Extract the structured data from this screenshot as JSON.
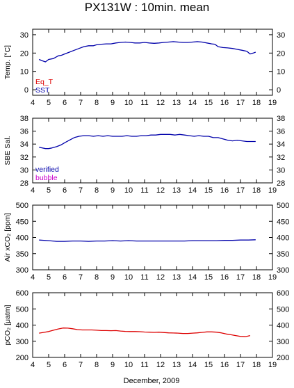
{
  "page": {
    "title": "PX131W : 10min. mean",
    "xlabel": "December, 2009"
  },
  "colors": {
    "red": "#dd0000",
    "blue": "#0000aa",
    "magenta": "#cc00cc",
    "axis": "#000000"
  },
  "chart_data": [
    {
      "type": "line",
      "ylabel": "Temp. [°C]",
      "ylim": [
        -3,
        33
      ],
      "yticks": [
        "0",
        "10",
        "20",
        "30"
      ],
      "xlim": [
        4,
        19
      ],
      "xticks": [
        "4",
        "5",
        "6",
        "7",
        "8",
        "9",
        "10",
        "11",
        "12",
        "13",
        "14",
        "15",
        "16",
        "17",
        "18",
        "19"
      ],
      "legend": [
        {
          "label": "Eq_T",
          "color": "#dd0000"
        },
        {
          "label": "SST",
          "color": "#0000aa"
        }
      ],
      "series": [
        {
          "name": "SST",
          "color": "#0000aa",
          "x": [
            4.4,
            4.6,
            4.8,
            5.0,
            5.3,
            5.6,
            5.8,
            6.0,
            6.3,
            6.6,
            6.9,
            7.2,
            7.5,
            7.8,
            8.0,
            8.3,
            8.6,
            8.9,
            9.2,
            9.5,
            9.8,
            10.1,
            10.4,
            10.7,
            11.0,
            11.3,
            11.6,
            11.9,
            12.2,
            12.5,
            12.8,
            13.1,
            13.4,
            13.7,
            14.0,
            14.3,
            14.6,
            14.9,
            15.2,
            15.4,
            15.6,
            15.9,
            16.2,
            16.5,
            16.8,
            17.1,
            17.4,
            17.6,
            17.8,
            17.95
          ],
          "values": [
            16.5,
            15.8,
            15.2,
            16.5,
            17.0,
            18.5,
            18.8,
            19.5,
            20.5,
            21.5,
            22.5,
            23.5,
            24.0,
            24.0,
            24.5,
            24.8,
            25.0,
            25.0,
            25.5,
            25.8,
            26.0,
            25.8,
            25.5,
            25.5,
            25.8,
            25.5,
            25.3,
            25.5,
            25.8,
            26.0,
            26.2,
            26.0,
            25.8,
            25.8,
            26.0,
            26.2,
            26.0,
            25.5,
            25.0,
            24.8,
            23.5,
            23.0,
            22.8,
            22.5,
            22.0,
            21.5,
            21.0,
            19.5,
            20.0,
            20.5
          ]
        }
      ]
    },
    {
      "type": "line",
      "ylabel": "SBE Sal.",
      "ylim": [
        28,
        38
      ],
      "yticks": [
        "28",
        "30",
        "32",
        "34",
        "36",
        "38"
      ],
      "xlim": [
        4,
        19
      ],
      "xticks": [
        "4",
        "5",
        "6",
        "7",
        "8",
        "9",
        "10",
        "11",
        "12",
        "13",
        "14",
        "15",
        "16",
        "17",
        "18",
        "19"
      ],
      "legend": [
        {
          "label": "verified",
          "color": "#0000aa"
        },
        {
          "label": "bubble",
          "color": "#cc00cc"
        }
      ],
      "series": [
        {
          "name": "verified",
          "color": "#0000aa",
          "x": [
            4.4,
            4.6,
            4.8,
            5.0,
            5.2,
            5.5,
            5.8,
            6.0,
            6.3,
            6.6,
            6.9,
            7.2,
            7.5,
            7.8,
            8.1,
            8.4,
            8.7,
            9.0,
            9.3,
            9.6,
            9.9,
            10.2,
            10.5,
            10.8,
            11.1,
            11.4,
            11.7,
            12.0,
            12.3,
            12.6,
            12.9,
            13.2,
            13.5,
            13.8,
            14.1,
            14.4,
            14.7,
            15.0,
            15.3,
            15.6,
            15.9,
            16.2,
            16.5,
            16.8,
            17.1,
            17.4,
            17.7,
            17.95
          ],
          "values": [
            33.5,
            33.4,
            33.3,
            33.3,
            33.4,
            33.6,
            33.9,
            34.2,
            34.6,
            35.0,
            35.2,
            35.3,
            35.3,
            35.2,
            35.3,
            35.2,
            35.3,
            35.2,
            35.2,
            35.2,
            35.3,
            35.2,
            35.2,
            35.3,
            35.3,
            35.4,
            35.4,
            35.5,
            35.5,
            35.5,
            35.4,
            35.5,
            35.4,
            35.3,
            35.2,
            35.3,
            35.2,
            35.2,
            35.0,
            35.0,
            34.8,
            34.6,
            34.5,
            34.6,
            34.5,
            34.4,
            34.4,
            34.4
          ]
        }
      ]
    },
    {
      "type": "line",
      "ylabel": "Air xCO₂ [ppm]",
      "ylim": [
        300,
        500
      ],
      "yticks": [
        "300",
        "350",
        "400",
        "450",
        "500"
      ],
      "xlim": [
        4,
        19
      ],
      "xticks": [
        "4",
        "5",
        "6",
        "7",
        "8",
        "9",
        "10",
        "11",
        "12",
        "13",
        "14",
        "15",
        "16",
        "17",
        "18",
        "19"
      ],
      "series": [
        {
          "name": "",
          "color": "#0000aa",
          "x": [
            4.4,
            5.0,
            5.5,
            6.0,
            6.5,
            7.0,
            7.5,
            8.0,
            8.5,
            9.0,
            9.5,
            10.0,
            10.5,
            11.0,
            11.5,
            12.0,
            12.5,
            13.0,
            13.5,
            14.0,
            14.5,
            15.0,
            15.5,
            16.0,
            16.5,
            17.0,
            17.5,
            17.95
          ],
          "values": [
            392,
            390,
            388,
            388,
            389,
            389,
            388,
            389,
            389,
            390,
            389,
            390,
            389,
            389,
            389,
            389,
            389,
            389,
            389,
            390,
            390,
            390,
            390,
            391,
            391,
            392,
            392,
            393
          ]
        }
      ]
    },
    {
      "type": "line",
      "ylabel": "pCO₂ [μatm]",
      "ylim": [
        200,
        600
      ],
      "yticks": [
        "200",
        "300",
        "400",
        "500",
        "600"
      ],
      "xlim": [
        4,
        19
      ],
      "xticks": [
        "4",
        "5",
        "6",
        "7",
        "8",
        "9",
        "10",
        "11",
        "12",
        "13",
        "14",
        "15",
        "16",
        "17",
        "18",
        "19"
      ],
      "series": [
        {
          "name": "",
          "color": "#dd0000",
          "x": [
            4.4,
            4.7,
            5.0,
            5.3,
            5.6,
            5.9,
            6.2,
            6.5,
            6.8,
            7.1,
            7.4,
            7.7,
            8.0,
            8.3,
            8.6,
            8.9,
            9.2,
            9.5,
            9.8,
            10.1,
            10.4,
            10.7,
            11.0,
            11.3,
            11.6,
            11.9,
            12.2,
            12.5,
            12.8,
            13.1,
            13.4,
            13.7,
            14.0,
            14.3,
            14.6,
            14.9,
            15.2,
            15.5,
            15.8,
            16.1,
            16.4,
            16.7,
            17.0,
            17.3,
            17.6
          ],
          "values": [
            350,
            355,
            360,
            368,
            376,
            382,
            381,
            377,
            372,
            370,
            370,
            370,
            368,
            366,
            366,
            365,
            366,
            363,
            361,
            360,
            360,
            359,
            357,
            356,
            355,
            356,
            354,
            352,
            351,
            350,
            348,
            348,
            350,
            352,
            355,
            358,
            358,
            356,
            352,
            345,
            340,
            335,
            330,
            328,
            335
          ]
        }
      ]
    }
  ]
}
